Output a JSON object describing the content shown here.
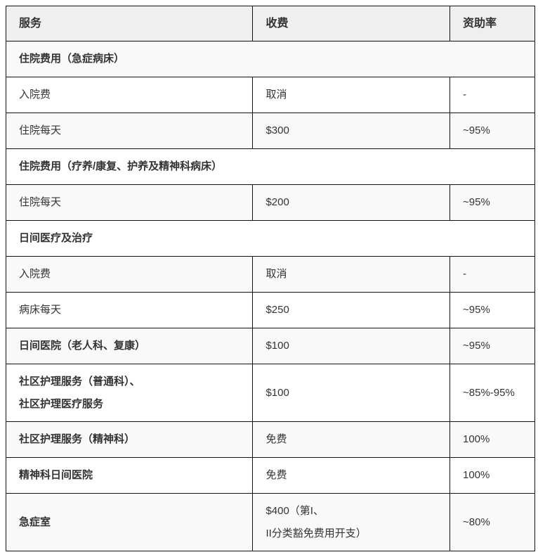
{
  "headers": {
    "service": "服务",
    "fee": "收费",
    "subsidy": "资助率"
  },
  "rows": [
    {
      "type": "section",
      "service": "住院费用（急症病床）"
    },
    {
      "type": "item",
      "service": "入院费",
      "fee": "取消",
      "subsidy": "-",
      "bold": false
    },
    {
      "type": "item",
      "service": "住院每天",
      "fee": "$300",
      "subsidy": "~95%",
      "bold": false
    },
    {
      "type": "section",
      "service": "住院费用（疗养/康复、护养及精神科病床）"
    },
    {
      "type": "item",
      "service": "住院每天",
      "fee": "$200",
      "subsidy": "~95%",
      "bold": false
    },
    {
      "type": "section",
      "service": "日间医疗及治疗"
    },
    {
      "type": "item",
      "service": "入院费",
      "fee": "取消",
      "subsidy": "-",
      "bold": false
    },
    {
      "type": "item",
      "service": "病床每天",
      "fee": "$250",
      "subsidy": "~95%",
      "bold": false
    },
    {
      "type": "item",
      "service": "日间医院（老人科、复康）",
      "fee": "$100",
      "subsidy": "~95%",
      "bold": true
    },
    {
      "type": "item",
      "service": "社区护理服务（普通科）、",
      "service_line2": "社区护理医疗服务",
      "fee": "$100",
      "subsidy": "~85%-95%",
      "bold": true
    },
    {
      "type": "item",
      "service": "社区护理服务（精神科）",
      "fee": "免费",
      "subsidy": "100%",
      "bold": true
    },
    {
      "type": "item",
      "service": "精神科日间医院",
      "fee": "免费",
      "subsidy": "100%",
      "bold": true
    },
    {
      "type": "item",
      "service": "急症室",
      "fee": "$400（第I、",
      "fee_line2": "II分类豁免费用开支）",
      "subsidy": "~80%",
      "bold": true
    }
  ]
}
